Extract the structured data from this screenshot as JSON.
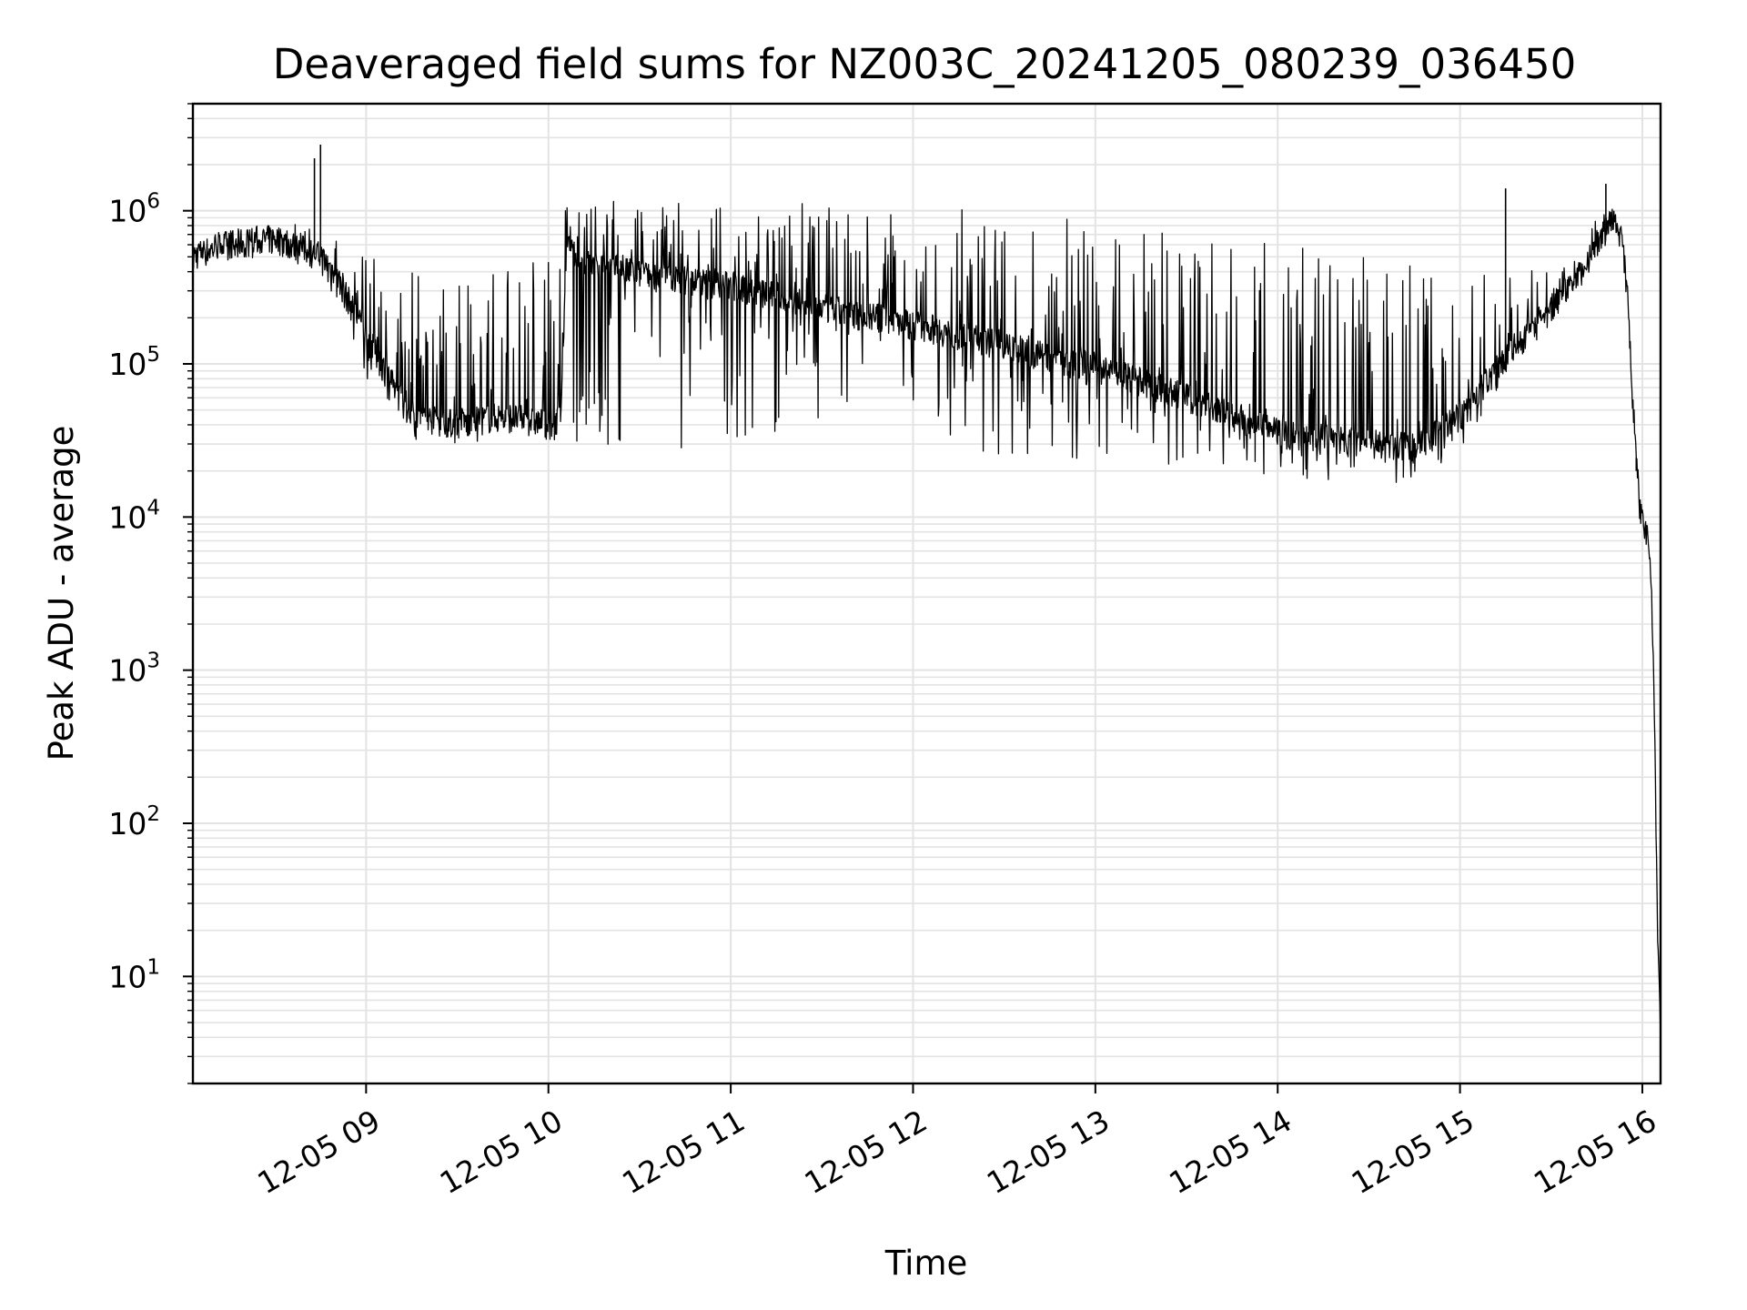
{
  "chart_data": {
    "type": "line",
    "title": "Deaveraged field sums for NZ003C_20241205_080239_036450",
    "xlabel": "Time",
    "ylabel": "Peak ADU - average",
    "y_scale": "log",
    "x_ticks": [
      "12-05 09",
      "12-05 10",
      "12-05 11",
      "12-05 12",
      "12-05 13",
      "12-05 14",
      "12-05 15",
      "12-05 16"
    ],
    "y_ticks": [
      {
        "base": "10",
        "exp": "1"
      },
      {
        "base": "10",
        "exp": "2"
      },
      {
        "base": "10",
        "exp": "3"
      },
      {
        "base": "10",
        "exp": "4"
      },
      {
        "base": "10",
        "exp": "5"
      },
      {
        "base": "10",
        "exp": "6"
      }
    ],
    "xlim": [
      "12-05 08:03",
      "12-05 16:06"
    ],
    "ylim": [
      2,
      5000000
    ],
    "grid": true,
    "line_color": "#000000",
    "series": [
      {
        "x": [
          "12-05 08:03",
          "12-05 08:15",
          "12-05 08:30",
          "12-05 08:45",
          "12-05 08:50",
          "12-05 09:00",
          "12-05 09:10",
          "12-05 09:15",
          "12-05 09:30",
          "12-05 09:45",
          "12-05 10:00",
          "12-05 10:04",
          "12-05 10:06",
          "12-05 10:10",
          "12-05 10:30",
          "12-05 11:00",
          "12-05 11:30",
          "12-05 12:00",
          "12-05 12:30",
          "12-05 13:00",
          "12-05 13:30",
          "12-05 14:00",
          "12-05 14:30",
          "12-05 14:45",
          "12-05 15:00",
          "12-05 15:15",
          "12-05 15:30",
          "12-05 15:40",
          "12-05 15:45",
          "12-05 15:50",
          "12-05 15:53",
          "12-05 15:55",
          "12-05 15:57",
          "12-05 15:59",
          "12-05 16:01",
          "12-05 16:02",
          "12-05 16:03",
          "12-05 16:04",
          "12-05 16:05",
          "12-05 16:06"
        ],
        "base": [
          500000,
          600000,
          650000,
          500000,
          380000,
          150000,
          65000,
          45000,
          40000,
          45000,
          40000,
          45000,
          600000,
          450000,
          380000,
          320000,
          230000,
          180000,
          130000,
          95000,
          60000,
          35000,
          30000,
          28000,
          45000,
          110000,
          230000,
          400000,
          600000,
          850000,
          700000,
          300000,
          50000,
          12000,
          8000,
          7000,
          3000,
          500,
          20,
          4
        ],
        "high": [
          700000,
          750000,
          850000,
          800000,
          700000,
          600000,
          500000,
          450000,
          450000,
          500000,
          500000,
          550000,
          1300000,
          1200000,
          1200000,
          1200000,
          1100000,
          1050000,
          1000000,
          900000,
          700000,
          600000,
          500000,
          450000,
          400000,
          400000,
          450000,
          600000,
          900000,
          1000000,
          800000,
          350000,
          60000,
          14000,
          9000,
          8000,
          3200,
          550,
          22,
          4
        ],
        "low": [
          400000,
          450000,
          500000,
          400000,
          250000,
          80000,
          45000,
          32000,
          30000,
          32000,
          28000,
          30000,
          30000,
          30000,
          28000,
          28000,
          27000,
          26000,
          25000,
          24000,
          20000,
          18000,
          17000,
          16000,
          25000,
          80000,
          180000,
          350000,
          550000,
          750000,
          600000,
          250000,
          40000,
          9000,
          7000,
          6000,
          2800,
          450,
          18,
          4
        ]
      }
    ],
    "spikes": [
      {
        "x": "12-05 08:45",
        "y": 2700000
      },
      {
        "x": "12-05 08:43",
        "y": 2200000
      },
      {
        "x": "12-05 15:48",
        "y": 1500000
      },
      {
        "x": "12-05 15:15",
        "y": 1400000
      },
      {
        "x": "12-05 15:58",
        "y": 20000
      }
    ]
  }
}
